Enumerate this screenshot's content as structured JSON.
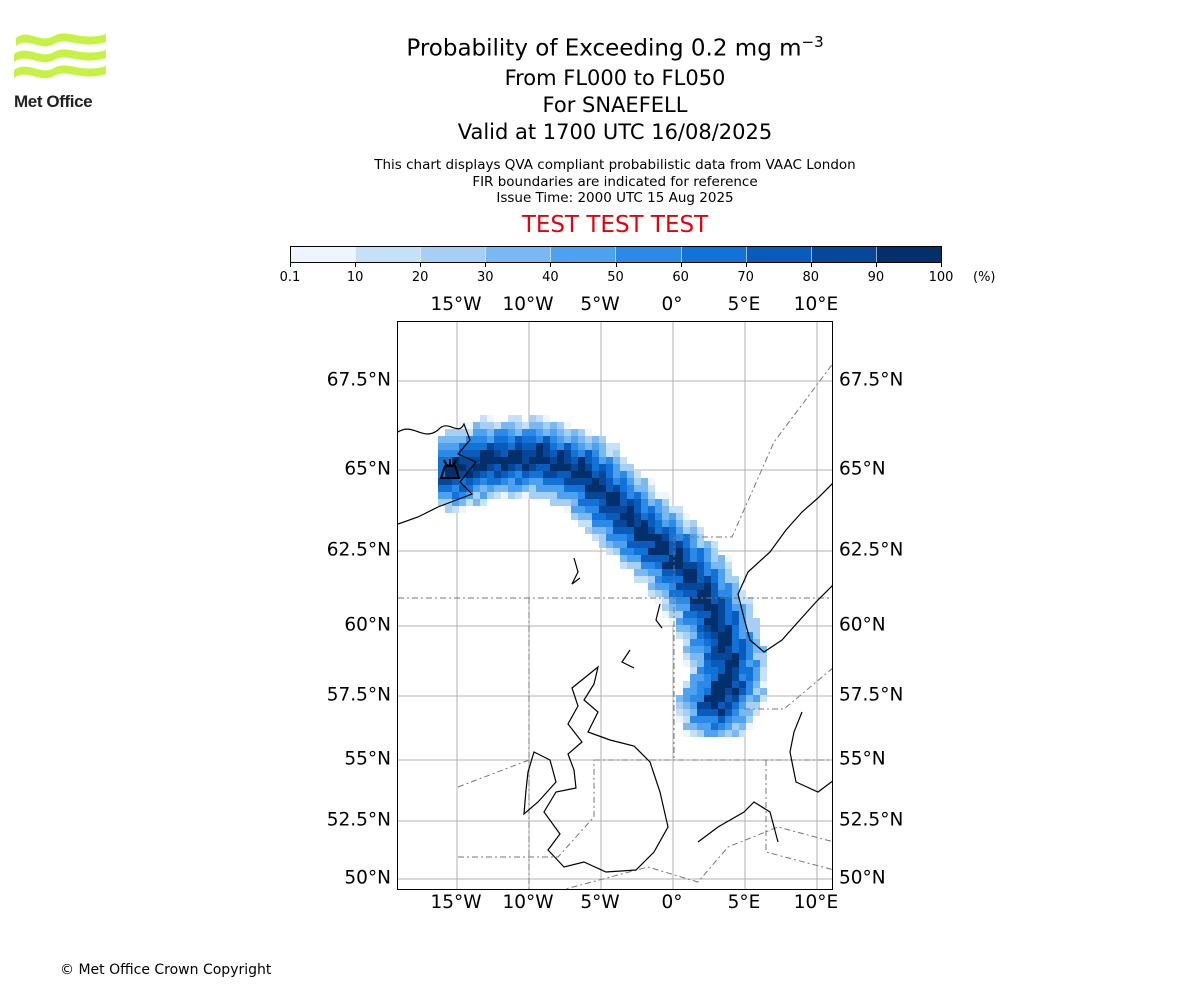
{
  "logo": {
    "brand_name": "Met Office",
    "brand_color": "#c5f244"
  },
  "title": {
    "main_prefix": "Probability of Exceeding 0.2 mg m",
    "main_superscript": "−3",
    "flight_levels": "From FL000 to FL050",
    "volcano": "For SNAEFELL",
    "valid": "Valid at 1700 UTC 16/08/2025"
  },
  "info": {
    "line1": "This chart displays QVA compliant probabilistic data from VAAC London",
    "line2": "FIR boundaries are indicated for reference",
    "line3": "Issue Time: 2000 UTC 15 Aug 2025"
  },
  "test_banner": {
    "text": "TEST TEST TEST",
    "color": "#e8000b"
  },
  "colorbar": {
    "ticks": [
      "0.1",
      "10",
      "20",
      "30",
      "40",
      "50",
      "60",
      "70",
      "80",
      "90",
      "100"
    ],
    "unit": "(%)",
    "colors": [
      "#eef5fd",
      "#c6e0f8",
      "#a6cff5",
      "#7ab8f1",
      "#4ea1ee",
      "#2b8ae8",
      "#1172d8",
      "#0a5cbc",
      "#06479a",
      "#032f6b"
    ]
  },
  "map": {
    "lon_labels": [
      "15°W",
      "10°W",
      "5°W",
      "0°",
      "5°E",
      "10°E"
    ],
    "lat_labels": [
      "67.5°N",
      "65°N",
      "62.5°N",
      "60°N",
      "57.5°N",
      "55°N",
      "52.5°N",
      "50°N"
    ],
    "volcano_symbol": "volcano-icon"
  },
  "copyright": "© Met Office Crown Copyright"
}
